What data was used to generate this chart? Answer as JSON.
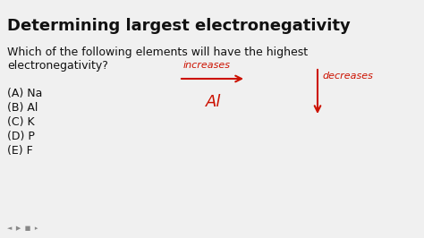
{
  "title": "Determining largest electronegativity",
  "question_line1": "Which of the following elements will have the highest",
  "question_line2": "electronegativity?",
  "choices": [
    "(A) Na",
    "(B) Al",
    "(C) K",
    "(D) P",
    "(E) F"
  ],
  "increases_label": "increases",
  "Al_label": "Al",
  "decreases_label": "decreases",
  "bg_color": "#f0f0f0",
  "title_color": "#111111",
  "text_color": "#111111",
  "red_color": "#cc1100",
  "title_fontsize": 13,
  "question_fontsize": 9,
  "choices_fontsize": 9,
  "annotation_fontsize": 8,
  "Al_fontsize": 13
}
